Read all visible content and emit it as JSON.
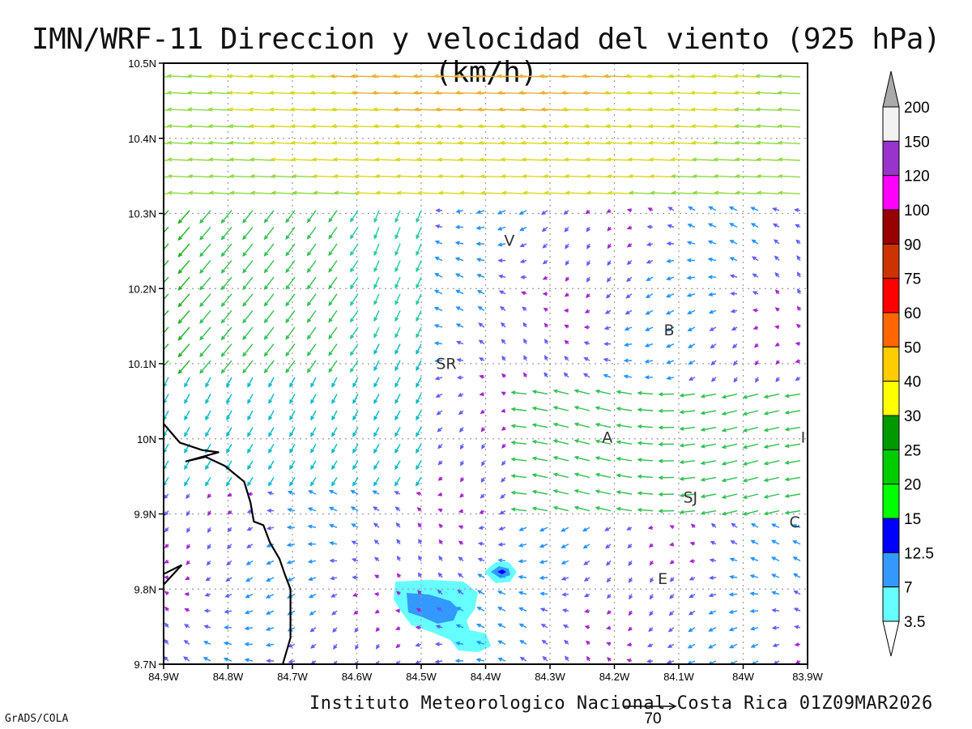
{
  "title": "IMN/WRF-11 Direccion y velocidad del viento (925 hPa)(km/h)",
  "footer": "Instituto Meteorologico Nacional Costa Rica 01Z09MAR2026",
  "credit": "GrADS/COLA",
  "reference_vector": {
    "label": "70"
  },
  "map": {
    "lon_range": [
      -84.9,
      -83.9
    ],
    "lat_range": [
      9.7,
      10.5
    ],
    "x_ticks": [
      {
        "value": -84.9,
        "label": "84.9W"
      },
      {
        "value": -84.8,
        "label": "84.8W"
      },
      {
        "value": -84.7,
        "label": "84.7W"
      },
      {
        "value": -84.6,
        "label": "84.6W"
      },
      {
        "value": -84.5,
        "label": "84.5W"
      },
      {
        "value": -84.4,
        "label": "84.4W"
      },
      {
        "value": -84.3,
        "label": "84.3W"
      },
      {
        "value": -84.2,
        "label": "84.2W"
      },
      {
        "value": -84.1,
        "label": "84.1W"
      },
      {
        "value": -84.0,
        "label": "84W"
      },
      {
        "value": -83.9,
        "label": "83.9W"
      }
    ],
    "y_ticks": [
      {
        "value": 10.5,
        "label": "10.5N"
      },
      {
        "value": 10.4,
        "label": "10.4N"
      },
      {
        "value": 10.3,
        "label": "10.3N"
      },
      {
        "value": 10.2,
        "label": "10.2N"
      },
      {
        "value": 10.1,
        "label": "10.1N"
      },
      {
        "value": 10.0,
        "label": "10N"
      },
      {
        "value": 9.9,
        "label": "9.9N"
      },
      {
        "value": 9.8,
        "label": "9.8N"
      },
      {
        "value": 9.7,
        "label": "9.7N"
      }
    ],
    "grid": true,
    "places": [
      {
        "name": "V",
        "lon": -84.363,
        "lat": 10.257
      },
      {
        "name": "SR",
        "lon": -84.461,
        "lat": 10.093
      },
      {
        "name": "B",
        "lon": -84.115,
        "lat": 10.138
      },
      {
        "name": "A",
        "lon": -84.211,
        "lat": 9.995
      },
      {
        "name": "I",
        "lon": -83.907,
        "lat": 9.995
      },
      {
        "name": "SJ",
        "lon": -84.082,
        "lat": 9.915
      },
      {
        "name": "C",
        "lon": -83.92,
        "lat": 9.882
      },
      {
        "name": "E",
        "lon": -84.125,
        "lat": 9.807
      }
    ],
    "coastline": [
      [
        -84.9,
        10.02
      ],
      [
        -84.875,
        9.995
      ],
      [
        -84.84,
        9.985
      ],
      [
        -84.815,
        9.982
      ],
      [
        -84.865,
        9.97
      ],
      [
        -84.835,
        9.976
      ],
      [
        -84.805,
        9.964
      ],
      [
        -84.775,
        9.943
      ],
      [
        -84.765,
        9.915
      ],
      [
        -84.76,
        9.89
      ],
      [
        -84.745,
        9.885
      ],
      [
        -84.735,
        9.862
      ],
      [
        -84.72,
        9.84
      ],
      [
        -84.712,
        9.82
      ],
      [
        -84.703,
        9.8
      ],
      [
        -84.703,
        9.735
      ],
      [
        -84.715,
        9.7
      ]
    ],
    "coastline_peninsula": [
      [
        -84.9,
        9.82
      ],
      [
        -84.872,
        9.832
      ],
      [
        -84.9,
        9.806
      ]
    ]
  },
  "colorbar": {
    "labels": [
      "200",
      "150",
      "120",
      "100",
      "90",
      "75",
      "60",
      "50",
      "40",
      "30",
      "25",
      "20",
      "15",
      "12.5",
      "7",
      "3.5"
    ],
    "colors": [
      "#f2f2f2",
      "#9933cc",
      "#ff00ff",
      "#990000",
      "#cc3300",
      "#ff0000",
      "#ff6600",
      "#ffcc00",
      "#ffff00",
      "#009900",
      "#00cc00",
      "#00ff00",
      "#0000ff",
      "#3399ff",
      "#66ffff"
    ],
    "over_color": "#aaaaaa",
    "under_color": "#ffffff"
  },
  "shading_color_light": "#66ffff",
  "shading_color_dark": "#3399ff"
}
